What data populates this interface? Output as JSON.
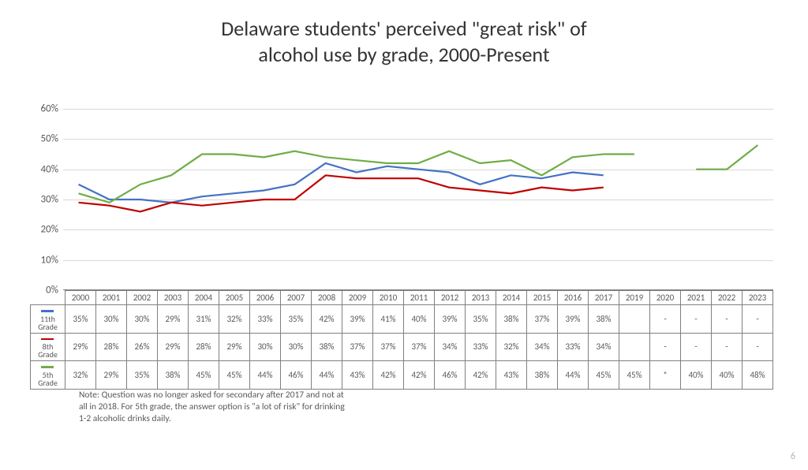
{
  "title_line1": "Delaware students' perceived \"great risk\" of",
  "title_line2": "alcohol use by grade, 2000-Present",
  "chart": {
    "type": "line",
    "ylim": [
      0,
      60
    ],
    "ytick_step": 10,
    "ytick_labels": [
      "0%",
      "10%",
      "20%",
      "30%",
      "40%",
      "50%",
      "60%"
    ],
    "years": [
      "2000",
      "2001",
      "2002",
      "2003",
      "2004",
      "2005",
      "2006",
      "2007",
      "2008",
      "2009",
      "2010",
      "2011",
      "2012",
      "2013",
      "2014",
      "2015",
      "2016",
      "2017",
      "2019",
      "2020",
      "2021",
      "2022",
      "2023"
    ],
    "grid_color": "#d9d9d9",
    "axis_color": "#808080",
    "background_color": "#ffffff",
    "line_width": 2.2,
    "series": [
      {
        "name": "11th Grade",
        "color": "#4472c4",
        "values": [
          35,
          30,
          30,
          29,
          31,
          32,
          33,
          35,
          42,
          39,
          41,
          40,
          39,
          35,
          38,
          37,
          39,
          38,
          null,
          null,
          null,
          null,
          null
        ],
        "display": [
          "35%",
          "30%",
          "30%",
          "29%",
          "31%",
          "32%",
          "33%",
          "35%",
          "42%",
          "39%",
          "41%",
          "40%",
          "39%",
          "35%",
          "38%",
          "37%",
          "39%",
          "38%",
          "",
          "-",
          "-",
          "-",
          "-"
        ]
      },
      {
        "name": "8th Grade",
        "color": "#c00000",
        "values": [
          29,
          28,
          26,
          29,
          28,
          29,
          30,
          30,
          38,
          37,
          37,
          37,
          34,
          33,
          32,
          34,
          33,
          34,
          null,
          null,
          null,
          null,
          null
        ],
        "display": [
          "29%",
          "28%",
          "26%",
          "29%",
          "28%",
          "29%",
          "30%",
          "30%",
          "38%",
          "37%",
          "37%",
          "37%",
          "34%",
          "33%",
          "32%",
          "34%",
          "33%",
          "34%",
          "",
          "-",
          "-",
          "-",
          "-"
        ]
      },
      {
        "name": "5th Grade",
        "color": "#70ad47",
        "values": [
          32,
          29,
          35,
          38,
          45,
          45,
          44,
          46,
          44,
          43,
          42,
          42,
          46,
          42,
          43,
          38,
          44,
          45,
          45,
          null,
          40,
          40,
          48
        ],
        "display": [
          "32%",
          "29%",
          "35%",
          "38%",
          "45%",
          "45%",
          "44%",
          "46%",
          "44%",
          "43%",
          "42%",
          "42%",
          "46%",
          "42%",
          "43%",
          "38%",
          "44%",
          "45%",
          "45%",
          "*",
          "40%",
          "40%",
          "48%"
        ]
      }
    ]
  },
  "note_text": "Note: Question was no longer asked for secondary after 2017 and not at all in 2018. For 5th grade, the answer option is \"a lot of risk\" for drinking 1-2 alcoholic drinks daily.",
  "page_number": "6"
}
